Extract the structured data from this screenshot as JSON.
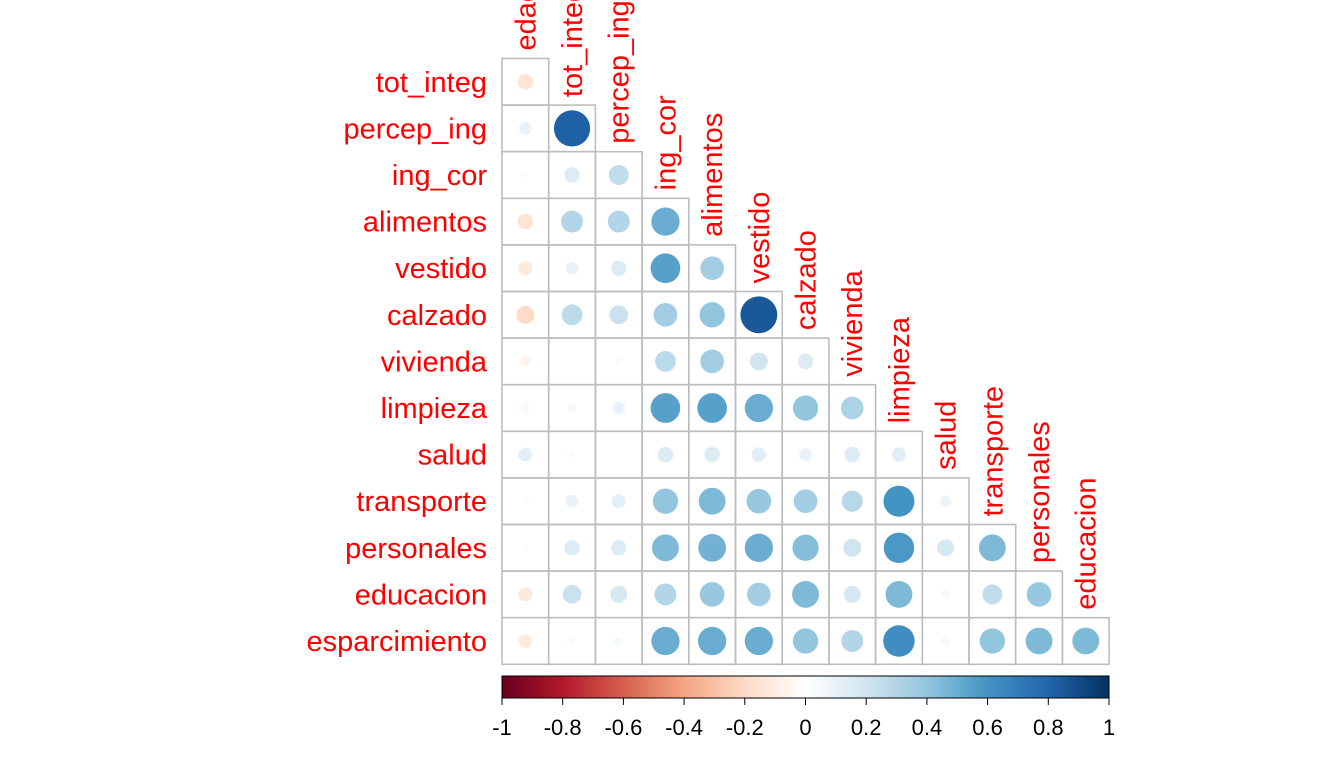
{
  "chart_data": {
    "type": "heatmap",
    "variables": [
      "edad",
      "tot_integ",
      "percep_ing",
      "ing_cor",
      "alimentos",
      "vestido",
      "calzado",
      "vivienda",
      "limpieza",
      "salud",
      "transporte",
      "personales",
      "educacion",
      "esparcimiento"
    ],
    "row_labels": [
      "tot_integ",
      "percep_ing",
      "ing_cor",
      "alimentos",
      "vestido",
      "calzado",
      "vivienda",
      "limpieza",
      "salud",
      "transporte",
      "personales",
      "educacion",
      "esparcimiento"
    ],
    "column_labels": [
      "edad",
      "tot_integ",
      "percep_ing",
      "ing_cor",
      "alimentos",
      "vestido",
      "calzado",
      "vivienda",
      "limpieza",
      "salud",
      "transporte",
      "personales",
      "educacion"
    ],
    "correlations": [
      [
        -0.15
      ],
      [
        0.1,
        0.82
      ],
      [
        0.02,
        0.15,
        0.25
      ],
      [
        -0.15,
        0.3,
        0.3,
        0.5
      ],
      [
        -0.12,
        0.1,
        0.15,
        0.55,
        0.35
      ],
      [
        -0.2,
        0.27,
        0.22,
        0.35,
        0.4,
        0.85
      ],
      [
        -0.07,
        0.0,
        0.03,
        0.27,
        0.35,
        0.2,
        0.15
      ],
      [
        -0.05,
        0.05,
        0.1,
        0.55,
        0.55,
        0.5,
        0.4,
        0.32
      ],
      [
        0.12,
        0.03,
        0.0,
        0.15,
        0.15,
        0.13,
        0.1,
        0.15,
        0.13
      ],
      [
        -0.03,
        0.1,
        0.12,
        0.4,
        0.45,
        0.38,
        0.35,
        0.28,
        0.6,
        0.08
      ],
      [
        -0.03,
        0.15,
        0.15,
        0.45,
        0.48,
        0.5,
        0.43,
        0.2,
        0.58,
        0.18,
        0.45
      ],
      [
        -0.12,
        0.22,
        0.18,
        0.3,
        0.38,
        0.35,
        0.45,
        0.18,
        0.45,
        0.05,
        0.25,
        0.38
      ],
      [
        -0.12,
        0.03,
        0.05,
        0.5,
        0.5,
        0.5,
        0.4,
        0.3,
        0.62,
        0.05,
        0.4,
        0.45,
        0.45
      ]
    ],
    "colorbar": {
      "range": [
        -1,
        1
      ],
      "ticks": [
        "-1",
        "-0.8",
        "-0.6",
        "-0.4",
        "-0.2",
        "0",
        "0.2",
        "0.4",
        "0.6",
        "0.8",
        "1"
      ],
      "colors": [
        "#67001f",
        "#b2182b",
        "#d6604d",
        "#f4a582",
        "#fddbc7",
        "#ffffff",
        "#d1e5f0",
        "#92c5de",
        "#4393c3",
        "#2166ac",
        "#053061"
      ]
    },
    "label_color": "#ff0000",
    "grid_color": "#bdbdbd",
    "shape": "circle",
    "layout": "lower-triangle"
  }
}
